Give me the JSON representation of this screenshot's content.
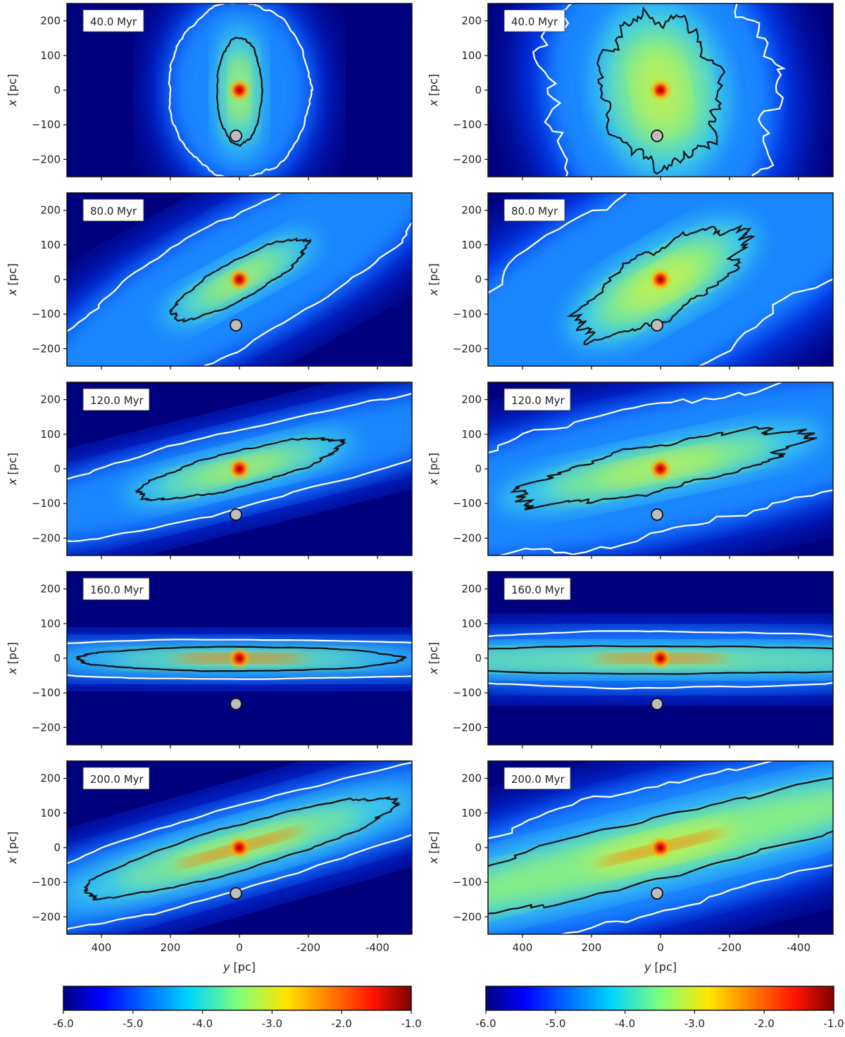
{
  "chart_data": {
    "type": "heatmap",
    "colormap": "jet",
    "rows_time_labels": [
      "40.0 Myr",
      "80.0 Myr",
      "120.0 Myr",
      "160.0 Myr",
      "200.0 Myr"
    ],
    "x_axis": {
      "label_var": "y",
      "label_unit": "[pc]",
      "range": [
        500,
        -500
      ],
      "ticks": [
        400,
        200,
        0,
        -200,
        -400
      ],
      "tick_labels": [
        "400",
        "200",
        "0",
        "-200",
        "-400"
      ]
    },
    "y_axis": {
      "label_var": "x",
      "label_unit": "[pc]",
      "range": [
        -250,
        250
      ],
      "ticks": [
        200,
        100,
        0,
        -100,
        -200
      ],
      "tick_labels": [
        "200",
        "100",
        "0",
        "−100",
        "−200"
      ]
    },
    "colorbar": {
      "range": [
        -6.0,
        -1.0
      ],
      "ticks": [
        -6.0,
        -5.0,
        -4.0,
        -3.0,
        -2.0,
        -1.0
      ],
      "tick_labels": [
        "-6.0",
        "-5.0",
        "-4.0",
        "-3.0",
        "-2.0",
        "-1.0"
      ]
    },
    "marker": {
      "y": 10,
      "x": -132,
      "color": "#bdbdbd"
    },
    "columns": [
      {
        "panels": [
          {
            "time": "40.0 Myr",
            "angle_deg": 0,
            "inner": {
              "a": 65,
              "b": 155,
              "cy": -3
            },
            "outer": {
              "a": 205,
              "b": 255,
              "cy": 0
            },
            "rough": 2,
            "glow": 1.0,
            "bars": false
          },
          {
            "time": "80.0 Myr",
            "angle_deg": -29,
            "inner": {
              "a": 220,
              "b": 55,
              "cy": 0
            },
            "outer": {
              "a": 650,
              "b": 175,
              "cy": 0
            },
            "rough": 4,
            "glow": 1.0,
            "bars": false
          },
          {
            "time": "120.0 Myr",
            "angle_deg": -14,
            "inner": {
              "a": 300,
              "b": 52,
              "cy": 0
            },
            "outer": {
              "a": 900,
              "b": 110,
              "cy": 0
            },
            "rough": 4,
            "glow": 1.0,
            "bars": false
          },
          {
            "time": "160.0 Myr",
            "angle_deg": 0,
            "inner": {
              "a": 470,
              "b": 35,
              "cy": -2
            },
            "outer": {
              "a": 900,
              "b": 57,
              "cy": -3
            },
            "rough": 2,
            "glow": 0.8,
            "bars": true
          },
          {
            "time": "200.0 Myr",
            "angle_deg": -16,
            "inner": {
              "a": 470,
              "b": 65,
              "cy": 0
            },
            "outer": {
              "a": 900,
              "b": 118,
              "cy": 0
            },
            "rough": 3,
            "glow": 1.0,
            "bars": true
          }
        ]
      },
      {
        "panels": [
          {
            "time": "40.0 Myr",
            "angle_deg": -10,
            "inner": {
              "a": 170,
              "b": 215,
              "cy": 0
            },
            "outer": {
              "a": 330,
              "b": 400,
              "cy": 0
            },
            "rough": 9,
            "glow": 1.1,
            "bars": false
          },
          {
            "time": "80.0 Myr",
            "angle_deg": -30,
            "inner": {
              "a": 270,
              "b": 95,
              "cy": -10
            },
            "outer": {
              "a": 900,
              "b": 270,
              "cy": 0
            },
            "rough": 9,
            "glow": 1.2,
            "bars": false
          },
          {
            "time": "120.0 Myr",
            "angle_deg": -12,
            "inner": {
              "a": 420,
              "b": 65,
              "cy": 5
            },
            "outer": {
              "a": 900,
              "b": 185,
              "cy": 0
            },
            "rough": 8,
            "glow": 1.1,
            "bars": false
          },
          {
            "time": "160.0 Myr",
            "angle_deg": 0,
            "inner": {
              "a": 900,
              "b": 40,
              "cy": -5
            },
            "outer": {
              "a": 900,
              "b": 82,
              "cy": -4
            },
            "rough": 3,
            "glow": 0.9,
            "bars": true
          },
          {
            "time": "200.0 Myr",
            "angle_deg": -14,
            "inner": {
              "a": 900,
              "b": 88,
              "cy": 0
            },
            "outer": {
              "a": 900,
              "b": 180,
              "cy": 0
            },
            "rough": 6,
            "glow": 1.2,
            "bars": true
          }
        ]
      }
    ]
  }
}
